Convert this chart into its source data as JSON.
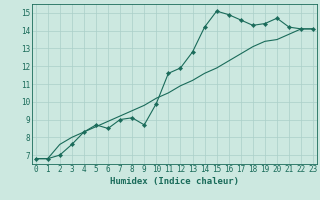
{
  "xlabel": "Humidex (Indice chaleur)",
  "ylabel": "",
  "bg_color": "#cce8e0",
  "line_color": "#1a6b5a",
  "grid_color": "#aacfc8",
  "x_data": [
    0,
    1,
    2,
    3,
    4,
    5,
    6,
    7,
    8,
    9,
    10,
    11,
    12,
    13,
    14,
    15,
    16,
    17,
    18,
    19,
    20,
    21,
    22,
    23
  ],
  "y_series1": [
    6.8,
    6.8,
    7.0,
    7.6,
    8.3,
    8.7,
    8.5,
    9.0,
    9.1,
    8.7,
    9.9,
    11.6,
    11.9,
    12.8,
    14.2,
    15.1,
    14.9,
    14.6,
    14.3,
    14.4,
    14.7,
    14.2,
    14.1,
    14.1
  ],
  "y_series2": [
    6.8,
    6.8,
    7.6,
    8.0,
    8.3,
    8.6,
    8.9,
    9.2,
    9.5,
    9.8,
    10.2,
    10.5,
    10.9,
    11.2,
    11.6,
    11.9,
    12.3,
    12.7,
    13.1,
    13.4,
    13.5,
    13.8,
    14.1,
    14.1
  ],
  "xlim": [
    -0.3,
    23.3
  ],
  "ylim": [
    6.5,
    15.5
  ],
  "yticks": [
    7,
    8,
    9,
    10,
    11,
    12,
    13,
    14,
    15
  ],
  "xticks": [
    0,
    1,
    2,
    3,
    4,
    5,
    6,
    7,
    8,
    9,
    10,
    11,
    12,
    13,
    14,
    15,
    16,
    17,
    18,
    19,
    20,
    21,
    22,
    23
  ],
  "marker": "D",
  "marker_size": 2.2,
  "linewidth": 0.8,
  "xlabel_fontsize": 6.5,
  "tick_fontsize": 5.5
}
